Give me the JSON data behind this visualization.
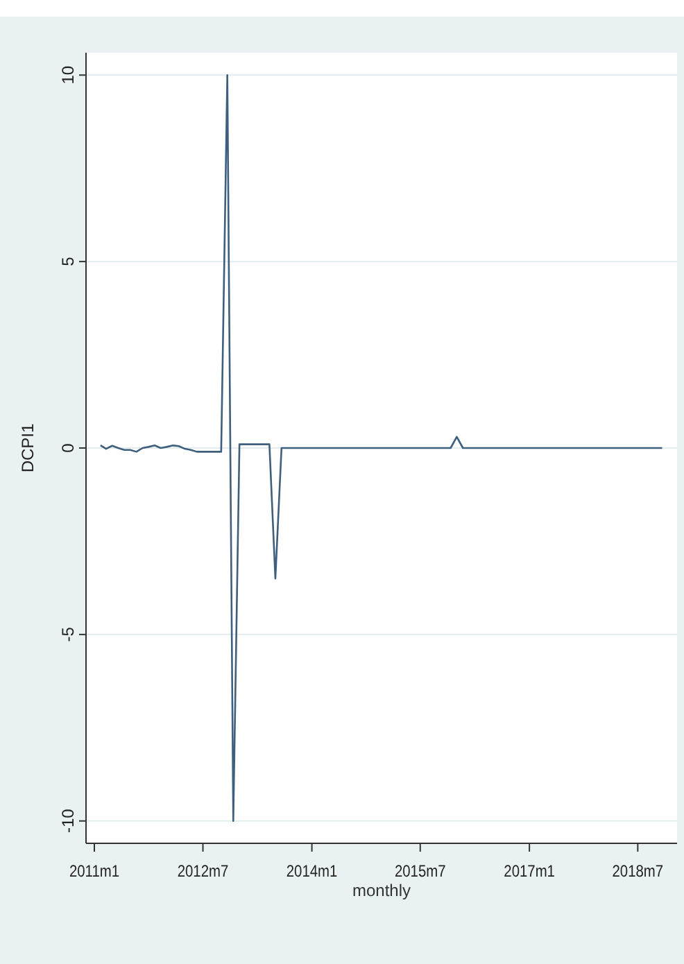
{
  "chart_data": {
    "type": "line",
    "xlabel": "monthly",
    "ylabel": "DCPI1",
    "x": [
      "2011-02",
      "2011-03",
      "2011-04",
      "2011-05",
      "2011-06",
      "2011-07",
      "2011-08",
      "2011-09",
      "2011-10",
      "2011-11",
      "2011-12",
      "2012-01",
      "2012-02",
      "2012-03",
      "2012-04",
      "2012-05",
      "2012-06",
      "2012-07",
      "2012-08",
      "2012-09",
      "2012-10",
      "2012-11",
      "2012-12",
      "2013-01",
      "2013-02",
      "2013-03",
      "2013-04",
      "2013-05",
      "2013-06",
      "2013-07",
      "2013-08",
      "2013-09",
      "2013-10",
      "2013-11",
      "2013-12",
      "2014-01",
      "2014-02",
      "2014-03",
      "2014-04",
      "2014-05",
      "2014-06",
      "2014-07",
      "2014-08",
      "2014-09",
      "2014-10",
      "2014-11",
      "2014-12",
      "2015-01",
      "2015-02",
      "2015-03",
      "2015-04",
      "2015-05",
      "2015-06",
      "2015-07",
      "2015-08",
      "2015-09",
      "2015-10",
      "2015-11",
      "2015-12",
      "2016-01",
      "2016-02",
      "2016-03",
      "2016-04",
      "2016-05",
      "2016-06",
      "2016-07",
      "2016-08",
      "2016-09",
      "2016-10",
      "2016-11",
      "2016-12",
      "2017-01",
      "2017-02",
      "2017-03",
      "2017-04",
      "2017-05",
      "2017-06",
      "2017-07",
      "2017-08",
      "2017-09",
      "2017-10",
      "2017-11",
      "2017-12",
      "2018-01",
      "2018-02",
      "2018-03",
      "2018-04",
      "2018-05",
      "2018-06",
      "2018-07",
      "2018-08",
      "2018-09",
      "2018-10",
      "2018-11"
    ],
    "series": [
      {
        "color": "#3f5f7f",
        "values": [
          0.07,
          -0.02,
          0.06,
          0,
          -0.05,
          -0.05,
          -0.1,
          0,
          0.03,
          0.07,
          0,
          0.03,
          0.07,
          0.05,
          -0.02,
          -0.05,
          -0.1,
          -0.1,
          -0.1,
          -0.1,
          -0.1,
          10,
          -10,
          0.1,
          0.1,
          0.1,
          0.1,
          0.1,
          0.1,
          -3.5,
          0,
          0,
          0,
          0,
          0,
          0,
          0,
          0,
          0,
          0,
          0,
          0,
          0,
          0,
          0,
          0,
          0,
          0,
          0,
          0,
          0,
          0,
          0,
          0,
          0,
          0,
          0,
          0,
          0,
          0.3,
          0,
          0,
          0,
          0,
          0,
          0,
          0,
          0,
          0,
          0,
          0,
          0,
          0,
          0,
          0,
          0,
          0,
          0,
          0,
          0,
          0,
          0,
          0,
          0,
          0,
          0,
          0,
          0,
          0,
          0,
          0,
          0,
          0,
          0
        ]
      }
    ],
    "xlim": [
      "2010-11-20",
      "2019-01-15"
    ],
    "xticks": [
      {
        "value": "2011-01",
        "label": "2011m1"
      },
      {
        "value": "2012-07",
        "label": "2012m7"
      },
      {
        "value": "2014-01",
        "label": "2014m1"
      },
      {
        "value": "2015-07",
        "label": "2015m7"
      },
      {
        "value": "2017-01",
        "label": "2017m1"
      },
      {
        "value": "2018-07",
        "label": "2018m7"
      }
    ],
    "ylim": [
      -10.6,
      10.6
    ],
    "yticks": [
      -10,
      -5,
      0,
      5,
      10
    ],
    "grid": "y",
    "line_style": "solid"
  }
}
